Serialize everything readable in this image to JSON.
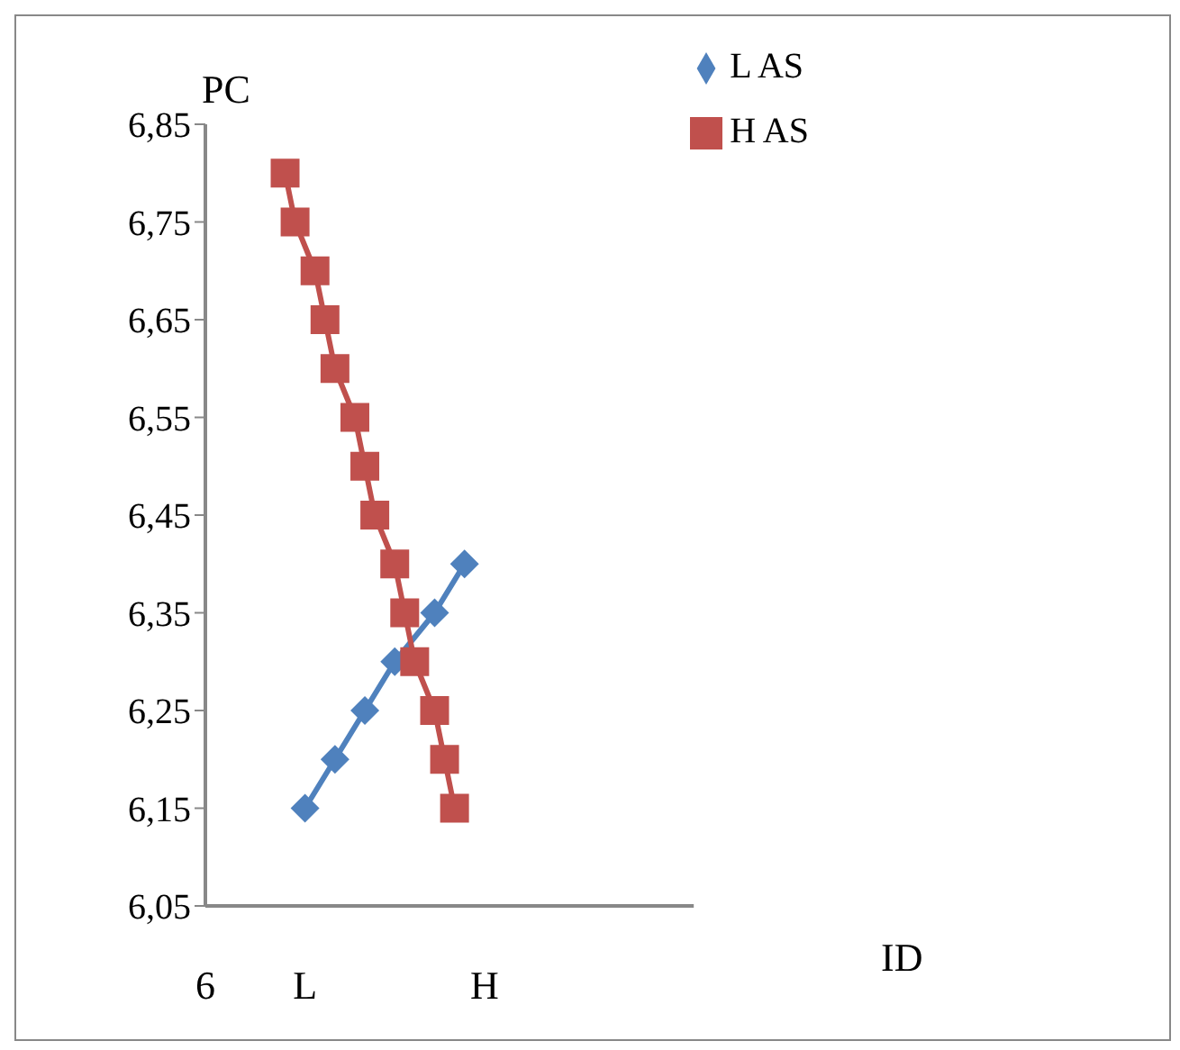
{
  "chart_data": {
    "type": "line",
    "xlabel": "ID",
    "ylabel": "PC",
    "categories": [
      "6",
      null,
      null,
      null,
      null,
      null,
      null,
      null,
      null,
      null,
      "L",
      null,
      null,
      null,
      null,
      null,
      null,
      null,
      null,
      null,
      null,
      null,
      null,
      null,
      null,
      null,
      null,
      null,
      "H",
      null,
      null,
      null,
      null,
      null,
      null,
      null,
      null,
      null,
      null,
      null,
      null,
      null,
      null,
      null,
      null,
      null,
      null,
      null,
      null,
      null
    ],
    "ylim": [
      6.05,
      6.85
    ],
    "yticks": [
      {
        "value": 6.05,
        "label": "6,05"
      },
      {
        "value": 6.15,
        "label": "6,15"
      },
      {
        "value": 6.25,
        "label": "6,25"
      },
      {
        "value": 6.35,
        "label": "6,35"
      },
      {
        "value": 6.45,
        "label": "6,45"
      },
      {
        "value": 6.55,
        "label": "6,55"
      },
      {
        "value": 6.65,
        "label": "6,65"
      },
      {
        "value": 6.75,
        "label": "6,75"
      },
      {
        "value": 6.85,
        "label": "6,85"
      }
    ],
    "grid": false,
    "legend": "top right",
    "series": [
      {
        "name": "L AS",
        "color": "#4f81bd",
        "marker": "diamond",
        "values": [
          null,
          null,
          null,
          null,
          null,
          null,
          null,
          null,
          null,
          null,
          6.15,
          null,
          null,
          6.2,
          null,
          null,
          6.25,
          null,
          null,
          6.3,
          null,
          null,
          null,
          6.35,
          null,
          null,
          6.4,
          null,
          null,
          null,
          null,
          null,
          null,
          null,
          null,
          null,
          null,
          null,
          null,
          null,
          null,
          null,
          null,
          null,
          null,
          null,
          null,
          null,
          null,
          null
        ]
      },
      {
        "name": "H AS",
        "color": "#c0504d",
        "marker": "square",
        "values": [
          null,
          null,
          null,
          null,
          null,
          null,
          null,
          null,
          6.8,
          6.75,
          null,
          6.7,
          6.65,
          6.6,
          null,
          6.55,
          6.5,
          6.45,
          null,
          6.4,
          6.35,
          6.3,
          null,
          6.25,
          6.2,
          6.15,
          null,
          null,
          null,
          null,
          null,
          null,
          null,
          null,
          null,
          null,
          null,
          null,
          null,
          null,
          null,
          null,
          null,
          null,
          null,
          null,
          null,
          null,
          null,
          null
        ]
      }
    ]
  }
}
